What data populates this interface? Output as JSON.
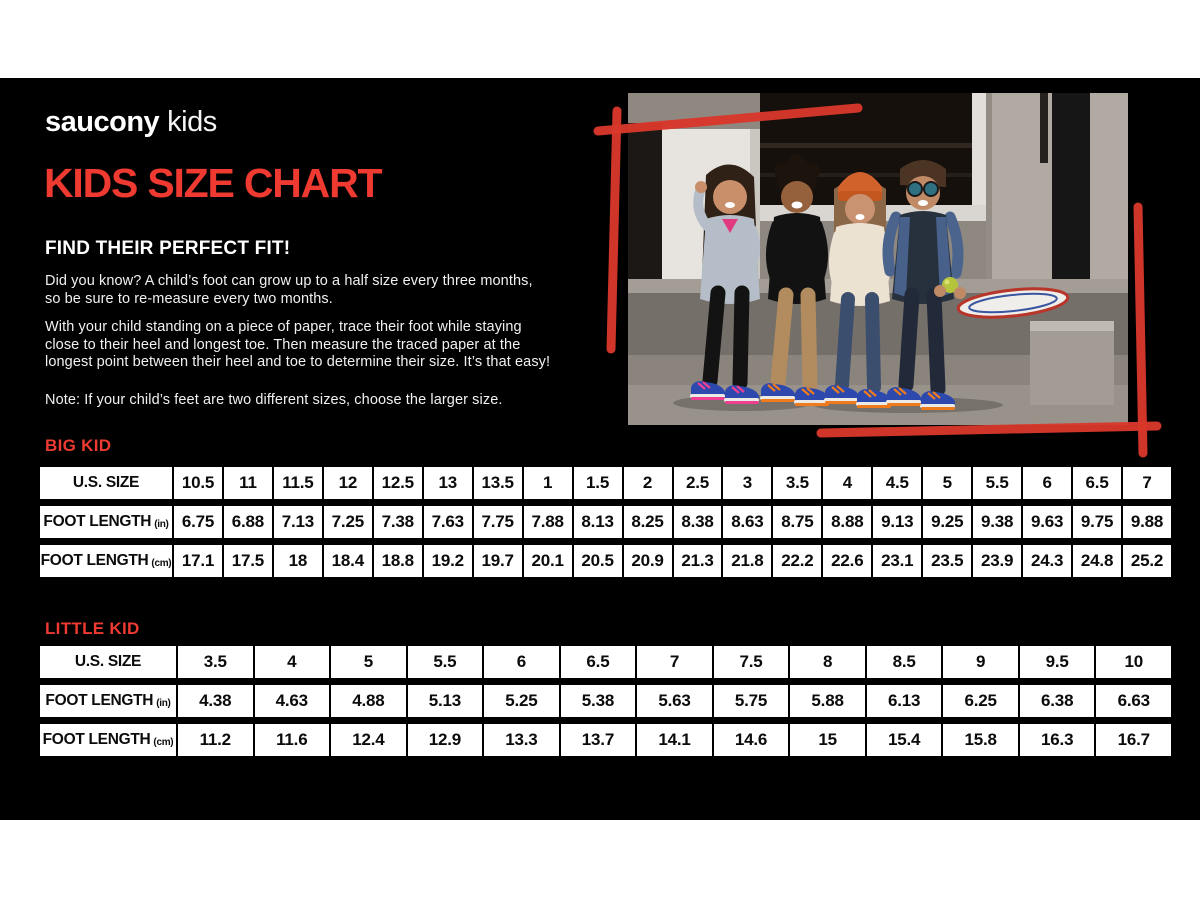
{
  "theme": {
    "accent": "#EE3A30",
    "frame_red": "#D8372B",
    "canvas_bg": "#000000",
    "page_bg": "#FFFFFF"
  },
  "brand": {
    "name_bold": "saucony",
    "name_light": "kids"
  },
  "header": {
    "title": "KIDS SIZE CHART"
  },
  "intro": {
    "heading": "FIND THEIR PERFECT FIT!",
    "paragraph1": [
      "Did you know? A child’s foot can grow up to a half size every three months,",
      "so be sure to re-measure every two months."
    ],
    "paragraph2": [
      "With your child standing on a piece of paper, trace their foot while staying",
      "close to their heel and longest toe. Then measure the traced paper at the",
      "longest point between their heel and toe to determine their size. It’s that easy!"
    ],
    "note": "Note: If your child’s feet are two different sizes, choose the larger size."
  },
  "photo": {
    "description": "Four laughing kids sitting side by side on concrete steps wearing colorful Saucony sneakers, framed by a hand-drawn red rectangle"
  },
  "size_tables": [
    {
      "section_label": "BIG KID",
      "first_col_width": 136,
      "rows": [
        {
          "label": "U.S. SIZE",
          "unit": "",
          "values": [
            "10.5",
            "11",
            "11.5",
            "12",
            "12.5",
            "13",
            "13.5",
            "1",
            "1.5",
            "2",
            "2.5",
            "3",
            "3.5",
            "4",
            "4.5",
            "5",
            "5.5",
            "6",
            "6.5",
            "7"
          ]
        },
        {
          "label": "FOOT LENGTH",
          "unit": "(in)",
          "values": [
            "6.75",
            "6.88",
            "7.13",
            "7.25",
            "7.38",
            "7.63",
            "7.75",
            "7.88",
            "8.13",
            "8.25",
            "8.38",
            "8.63",
            "8.75",
            "8.88",
            "9.13",
            "9.25",
            "9.38",
            "9.63",
            "9.75",
            "9.88"
          ]
        },
        {
          "label": "FOOT LENGTH",
          "unit": "(cm)",
          "values": [
            "17.1",
            "17.5",
            "18",
            "18.4",
            "18.8",
            "19.2",
            "19.7",
            "20.1",
            "20.5",
            "20.9",
            "21.3",
            "21.8",
            "22.2",
            "22.6",
            "23.1",
            "23.5",
            "23.9",
            "24.3",
            "24.8",
            "25.2"
          ]
        }
      ]
    },
    {
      "section_label": "LITTLE KID",
      "first_col_width": 140,
      "rows": [
        {
          "label": "U.S. SIZE",
          "unit": "",
          "values": [
            "3.5",
            "4",
            "5",
            "5.5",
            "6",
            "6.5",
            "7",
            "7.5",
            "8",
            "8.5",
            "9",
            "9.5",
            "10"
          ]
        },
        {
          "label": "FOOT LENGTH",
          "unit": "(in)",
          "values": [
            "4.38",
            "4.63",
            "4.88",
            "5.13",
            "5.25",
            "5.38",
            "5.63",
            "5.75",
            "5.88",
            "6.13",
            "6.25",
            "6.38",
            "6.63"
          ]
        },
        {
          "label": "FOOT LENGTH",
          "unit": "(cm)",
          "values": [
            "11.2",
            "11.6",
            "12.4",
            "12.9",
            "13.3",
            "13.7",
            "14.1",
            "14.6",
            "15",
            "15.4",
            "15.8",
            "16.3",
            "16.7"
          ]
        }
      ]
    }
  ]
}
